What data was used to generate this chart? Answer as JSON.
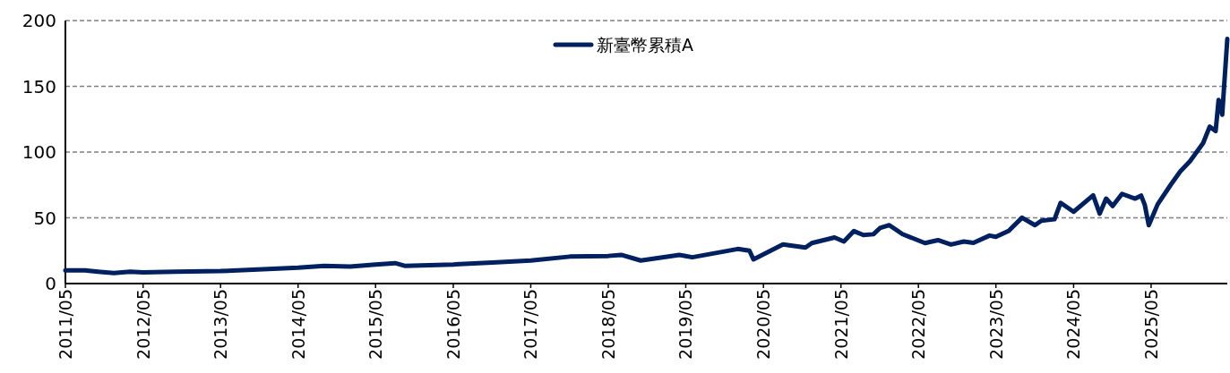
{
  "chart_data": {
    "type": "line",
    "x": [
      "2011-05-01",
      "2011-08-01",
      "2011-10-01",
      "2011-12-15",
      "2012-03-01",
      "2012-05-01",
      "2012-10-01",
      "2013-05-01",
      "2013-10-01",
      "2014-05-01",
      "2014-09-01",
      "2015-01-01",
      "2015-05-01",
      "2015-08-01",
      "2015-09-15",
      "2016-05-01",
      "2016-11-01",
      "2017-05-01",
      "2017-11-01",
      "2018-05-01",
      "2018-07-01",
      "2018-10-01",
      "2019-04-01",
      "2019-06-01",
      "2020-01-01",
      "2020-02-25",
      "2020-03-15",
      "2020-08-01",
      "2020-11-15",
      "2020-12-15",
      "2021-04-01",
      "2021-05-15",
      "2021-07-01",
      "2021-08-15",
      "2021-10-01",
      "2021-11-01",
      "2021-12-15",
      "2022-02-15",
      "2022-06-01",
      "2022-08-01",
      "2022-10-01",
      "2022-12-01",
      "2023-01-15",
      "2023-04-01",
      "2023-05-01",
      "2023-07-01",
      "2023-09-01",
      "2023-11-01",
      "2023-12-01",
      "2024-02-01",
      "2024-03-01",
      "2024-05-01",
      "2024-08-01",
      "2024-09-01",
      "2024-10-01",
      "2024-11-01",
      "2024-12-15",
      "2025-02-15",
      "2025-03-15",
      "2025-04-01",
      "2025-04-20",
      "2025-06-01",
      "2025-08-01",
      "2025-09-15",
      "2025-11-01",
      "2026-01-01",
      "2026-02-01",
      "2026-03-01",
      "2026-03-15",
      "2026-04-01",
      "2026-04-25"
    ],
    "series": [
      {
        "name": "新臺幣累積A",
        "color": "#002060",
        "values": [
          10,
          10,
          9,
          8,
          9,
          8.5,
          9,
          9.5,
          10.5,
          12,
          13.5,
          13,
          14.5,
          15.5,
          13.5,
          14.5,
          16,
          17.5,
          20.5,
          21,
          21.8,
          17.5,
          21.8,
          20,
          26.3,
          25,
          18.4,
          29.7,
          27.4,
          30.8,
          35,
          32,
          39.9,
          36.9,
          37.5,
          42.2,
          44.4,
          37.6,
          30.8,
          33,
          29.7,
          32,
          31,
          36.5,
          35.5,
          40.2,
          50.1,
          44.4,
          47.8,
          48.9,
          61.4,
          54.6,
          67.1,
          53.2,
          64.6,
          59,
          68.2,
          64.6,
          66.9,
          60,
          44.4,
          60.3,
          75,
          85.2,
          93.2,
          106.8,
          119.3,
          116,
          139.7,
          128.4,
          186
        ]
      }
    ],
    "xlim": [
      "2011-05-01",
      "2026-04-25"
    ],
    "xticks": [
      {
        "value": "2011-05-01",
        "label": "2011/05"
      },
      {
        "value": "2012-05-01",
        "label": "2012/05"
      },
      {
        "value": "2013-05-01",
        "label": "2013/05"
      },
      {
        "value": "2014-05-01",
        "label": "2014/05"
      },
      {
        "value": "2015-05-01",
        "label": "2015/05"
      },
      {
        "value": "2016-05-01",
        "label": "2016/05"
      },
      {
        "value": "2017-05-01",
        "label": "2017/05"
      },
      {
        "value": "2018-05-01",
        "label": "2018/05"
      },
      {
        "value": "2019-05-01",
        "label": "2019/05"
      },
      {
        "value": "2020-05-01",
        "label": "2020/05"
      },
      {
        "value": "2021-05-01",
        "label": "2021/05"
      },
      {
        "value": "2022-05-01",
        "label": "2022/05"
      },
      {
        "value": "2023-05-01",
        "label": "2023/05"
      },
      {
        "value": "2024-05-01",
        "label": "2024/05"
      },
      {
        "value": "2025-05-01",
        "label": "2025/05"
      }
    ],
    "ylim": [
      0,
      200
    ],
    "yticks": [
      0,
      50,
      100,
      150,
      200
    ],
    "grid": "y",
    "legend": "top"
  }
}
